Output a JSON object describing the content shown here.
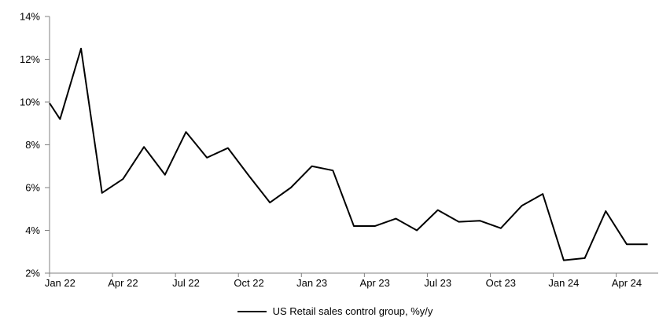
{
  "chart_data": {
    "type": "line",
    "title": "",
    "xlabel": "",
    "ylabel": "",
    "categories": [
      "Jan 22",
      "Feb 22",
      "Mar 22",
      "Apr 22",
      "May 22",
      "Jun 22",
      "Jul 22",
      "Aug 22",
      "Sep 22",
      "Oct 22",
      "Nov 22",
      "Dec 22",
      "Jan 23",
      "Feb 23",
      "Mar 23",
      "Apr 23",
      "May 23",
      "Jun 23",
      "Jul 23",
      "Aug 23",
      "Sep 23",
      "Oct 23",
      "Nov 23",
      "Dec 23",
      "Jan 24",
      "Feb 24",
      "Mar 24",
      "Apr 24",
      "May 24"
    ],
    "series": [
      {
        "name": "US Retail sales control group, %y/y",
        "color": "#000000",
        "line_width": 2,
        "values": [
          9.2,
          12.5,
          5.75,
          6.4,
          7.9,
          6.6,
          8.6,
          7.4,
          7.85,
          6.55,
          5.3,
          6.0,
          7.0,
          6.8,
          4.2,
          4.2,
          4.55,
          4.0,
          4.95,
          4.4,
          4.45,
          4.1,
          5.15,
          5.7,
          2.6,
          2.7,
          4.9,
          3.35,
          3.35
        ],
        "left_edge_entry_value": 9.95
      }
    ],
    "ylim": [
      2,
      14
    ],
    "y_tick_step": 2,
    "y_tick_labels": [
      "2%",
      "4%",
      "6%",
      "8%",
      "10%",
      "12%",
      "14%"
    ],
    "x_tick_labels": [
      "Jan 22",
      "Apr 22",
      "Jul 22",
      "Oct 22",
      "Jan 23",
      "Apr 23",
      "Jul 23",
      "Oct 23",
      "Jan 24",
      "Apr 24"
    ],
    "x_tick_every_months": 3,
    "x_axis_mode": "between-ticks",
    "grid": false,
    "axis_color": "#808080",
    "text_color": "#000000",
    "background": "#ffffff",
    "legend_position": "bottom-center"
  },
  "legend": {
    "label": "US Retail sales control group, %y/y"
  }
}
